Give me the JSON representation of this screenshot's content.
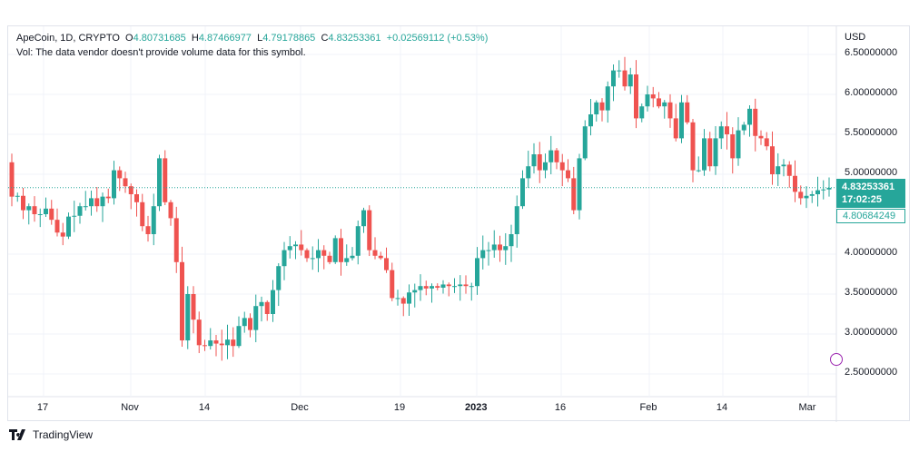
{
  "header": {
    "symbol": "ApeCoin, 1D, CRYPTO",
    "o_label": "O",
    "o": "4.80731685",
    "h_label": "H",
    "h": "4.87466977",
    "l_label": "L",
    "l": "4.79178865",
    "c_label": "C",
    "c": "4.83253361",
    "change": "+0.02569112 (+0.53%)",
    "vol_note": "Vol: The data vendor doesn't provide volume data for this symbol."
  },
  "price_axis": {
    "currency": "USD",
    "ticks": [
      "6.50000000",
      "6.00000000",
      "5.50000000",
      "5.00000000",
      "4.00000000",
      "3.50000000",
      "3.00000000",
      "2.50000000"
    ]
  },
  "last_price": {
    "price": "4.83253361",
    "countdown": "17:02:25",
    "secondary": "4.80684249"
  },
  "time_axis": {
    "labels": [
      "17",
      "Nov",
      "14",
      "Dec",
      "19",
      "2023",
      "16",
      "Feb",
      "14",
      "Mar"
    ]
  },
  "footer": {
    "brand": "TradingView"
  },
  "colors": {
    "up": "#26a69a",
    "down": "#ef5350",
    "grid": "#f0f3fa"
  },
  "chart_data": {
    "type": "candlestick",
    "start_date": "2022-10-11",
    "interval": "1D",
    "ylim": [
      2.3,
      6.65
    ],
    "last": 4.83253361,
    "close": [
      4.72,
      4.73,
      4.55,
      4.6,
      4.5,
      4.5,
      4.57,
      4.43,
      4.27,
      4.22,
      4.47,
      4.48,
      4.6,
      4.6,
      4.7,
      4.6,
      4.72,
      4.7,
      5.05,
      4.95,
      4.85,
      4.75,
      4.65,
      4.35,
      4.25,
      4.6,
      5.2,
      4.65,
      4.45,
      3.9,
      2.92,
      3.5,
      3.18,
      2.86,
      2.85,
      2.92,
      2.88,
      2.86,
      2.93,
      2.85,
      3.1,
      3.2,
      3.05,
      3.35,
      3.4,
      3.25,
      3.55,
      3.85,
      4.05,
      4.1,
      4.12,
      4.05,
      3.95,
      3.95,
      4.05,
      3.98,
      3.9,
      4.2,
      3.9,
      3.95,
      3.98,
      4.35,
      4.55,
      4.05,
      3.98,
      3.95,
      3.8,
      3.45,
      3.45,
      3.38,
      3.52,
      3.55,
      3.6,
      3.57,
      3.6,
      3.58,
      3.62,
      3.6,
      3.6,
      3.62,
      3.6,
      3.6,
      3.95,
      4.05,
      4.05,
      4.12,
      4.05,
      4.1,
      4.25,
      4.6,
      4.95,
      5.1,
      5.25,
      5.05,
      5.15,
      5.3,
      5.15,
      5.05,
      4.95,
      4.55,
      5.2,
      5.6,
      5.75,
      5.9,
      5.8,
      6.1,
      6.3,
      6.3,
      6.1,
      6.25,
      5.7,
      5.85,
      6.0,
      5.95,
      5.85,
      5.9,
      5.7,
      5.45,
      5.9,
      5.65,
      5.05,
      5.05,
      5.45,
      5.1,
      5.45,
      5.6,
      5.5,
      5.2,
      5.55,
      5.62,
      5.82,
      5.48,
      5.45,
      5.35,
      5.0,
      5.1,
      5.12,
      4.98,
      4.78,
      4.7,
      4.73,
      4.75,
      4.8,
      4.81,
      4.83
    ]
  }
}
